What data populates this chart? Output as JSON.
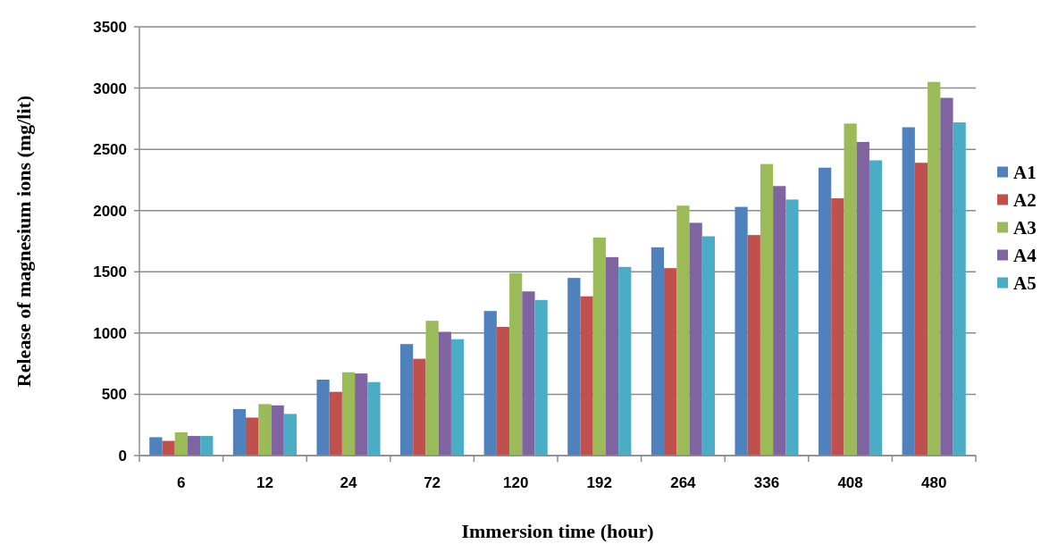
{
  "chart_data": {
    "type": "bar",
    "xlabel": "Immersion time (hour)",
    "ylabel": "Release of magnesium ions (mg/lit)",
    "categories": [
      "6",
      "12",
      "24",
      "72",
      "120",
      "192",
      "264",
      "336",
      "408",
      "480"
    ],
    "series": [
      {
        "name": "A1",
        "color": "#4f81bd",
        "values": [
          150,
          380,
          620,
          910,
          1180,
          1450,
          1700,
          2030,
          2350,
          2680
        ]
      },
      {
        "name": "A2",
        "color": "#c0504d",
        "values": [
          120,
          310,
          520,
          790,
          1050,
          1300,
          1530,
          1800,
          2100,
          2390
        ]
      },
      {
        "name": "A3",
        "color": "#9bbb59",
        "values": [
          190,
          420,
          680,
          1100,
          1490,
          1780,
          2040,
          2380,
          2710,
          3050
        ]
      },
      {
        "name": "A4",
        "color": "#8064a2",
        "values": [
          160,
          410,
          670,
          1010,
          1340,
          1620,
          1900,
          2200,
          2560,
          2920
        ]
      },
      {
        "name": "A5",
        "color": "#4bacc6",
        "values": [
          160,
          340,
          600,
          950,
          1270,
          1540,
          1790,
          2090,
          2410,
          2720
        ]
      }
    ],
    "ylim": [
      0,
      3500
    ],
    "yticks": [
      0,
      500,
      1000,
      1500,
      2000,
      2500,
      3000,
      3500
    ],
    "grid": "y",
    "legend": "right"
  }
}
